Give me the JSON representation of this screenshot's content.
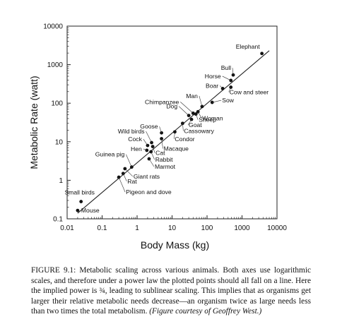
{
  "chart_data": {
    "type": "scatter",
    "xlabel": "Body Mass (kg)",
    "ylabel": "Metabolic Rate (watt)",
    "xscale": "log",
    "yscale": "log",
    "xlim": [
      0.01,
      10000
    ],
    "ylim": [
      0.1,
      10000
    ],
    "xticks": [
      "0.01",
      "0.1",
      "1",
      "10",
      "100",
      "1000",
      "10000"
    ],
    "yticks": [
      "0.1",
      "1",
      "10",
      "100",
      "1000",
      "10000"
    ],
    "grid": false,
    "fit_line": {
      "x": [
        0.02,
        6000
      ],
      "y": [
        0.14,
        2300
      ]
    },
    "points": [
      {
        "label": "Elephant",
        "x": 3700,
        "y": 1950
      },
      {
        "label": "Bull",
        "x": 560,
        "y": 540
      },
      {
        "label": "Horse",
        "x": 480,
        "y": 390
      },
      {
        "label": "Boar",
        "x": 280,
        "y": 240
      },
      {
        "label": "Cow and steer",
        "x": 480,
        "y": 260
      },
      {
        "label": "Man",
        "x": 72,
        "y": 82
      },
      {
        "label": "Sow",
        "x": 140,
        "y": 105
      },
      {
        "label": "Chimpanzee",
        "x": 40,
        "y": 55
      },
      {
        "label": "Woman",
        "x": 55,
        "y": 60
      },
      {
        "label": "Dog",
        "x": 30,
        "y": 48
      },
      {
        "label": "Goat",
        "x": 36,
        "y": 38
      },
      {
        "label": "Sheep",
        "x": 48,
        "y": 52
      },
      {
        "label": "Goose",
        "x": 5,
        "y": 17
      },
      {
        "label": "Cassowary",
        "x": 20,
        "y": 30
      },
      {
        "label": "Wild birds",
        "x": 2.6,
        "y": 9.5
      },
      {
        "label": "Cock",
        "x": 2.0,
        "y": 8
      },
      {
        "label": "Hen",
        "x": 1.9,
        "y": 6
      },
      {
        "label": "Condor",
        "x": 12,
        "y": 18
      },
      {
        "label": "Macaque",
        "x": 5,
        "y": 12
      },
      {
        "label": "Cat",
        "x": 2.8,
        "y": 7.5
      },
      {
        "label": "Rabbit",
        "x": 2.5,
        "y": 5.5
      },
      {
        "label": "Marmot",
        "x": 2.2,
        "y": 3.6
      },
      {
        "label": "Guinea pig",
        "x": 0.7,
        "y": 2.2
      },
      {
        "label": "Giant rats",
        "x": 0.45,
        "y": 2.0
      },
      {
        "label": "Rat",
        "x": 0.4,
        "y": 1.5
      },
      {
        "label": "Pigeon and dove",
        "x": 0.3,
        "y": 1.2
      },
      {
        "label": "Small birds",
        "x": 0.025,
        "y": 0.28
      },
      {
        "label": "Mouse",
        "x": 0.02,
        "y": 0.165
      }
    ]
  },
  "caption": {
    "text": "FIGURE 9.1: Metabolic scaling across various animals. Both axes use logarithmic scales, and therefore under a power law the plotted points should all fall on a line. Here the implied power is ¾, leading to sublinear scaling. This implies that as organisms get larger their relative metabolic needs decrease—an organism twice as large needs less than two times the total metabolism.",
    "credit": "(Figure courtesy of Geoffrey West.)"
  }
}
